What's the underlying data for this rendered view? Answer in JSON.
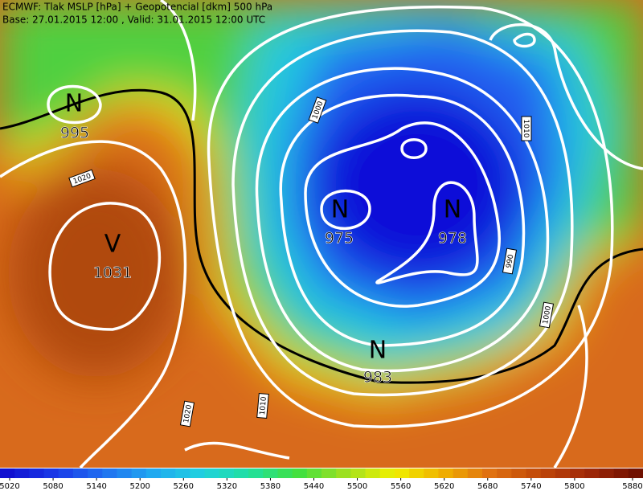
{
  "header": {
    "line1": "ECMWF: Tlak MSLP [hPa] + Geopotencial [dkm] 500 hPa",
    "line2": "Base: 27.01.2015 12:00 , Valid: 31.01.2015 12:00 UTC"
  },
  "pressure_centers": [
    {
      "label": "N",
      "value": "995"
    },
    {
      "label": "V",
      "value": "1031"
    },
    {
      "label": "N",
      "value": "975"
    },
    {
      "label": "N",
      "value": "978"
    },
    {
      "label": "N",
      "value": "983"
    }
  ],
  "isobar_labels": [
    "1020",
    "1000",
    "1010",
    "990",
    "1000",
    "1010",
    "1020"
  ],
  "colorbar": {
    "ticks": [
      5020,
      5080,
      5140,
      5200,
      5260,
      5320,
      5380,
      5440,
      5500,
      5560,
      5620,
      5680,
      5740,
      5800,
      5880
    ]
  }
}
